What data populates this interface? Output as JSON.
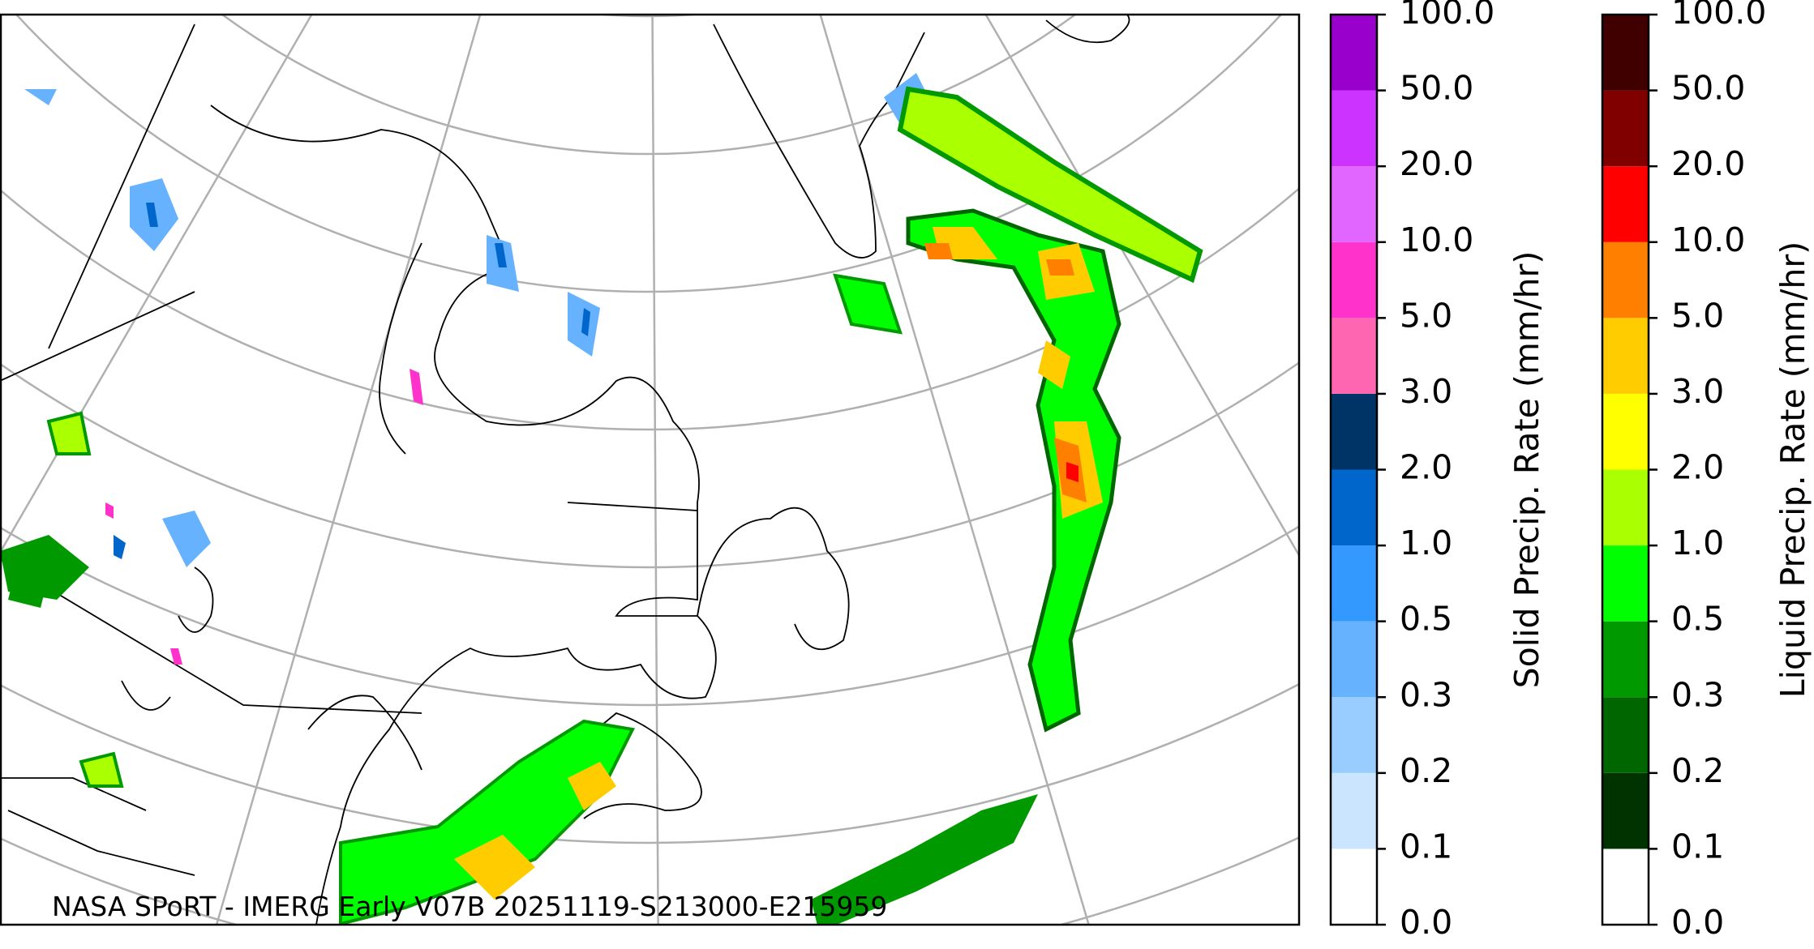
{
  "map": {
    "caption": "NASA SPoRT - IMERG Early V07B 20251119-S213000-E215959"
  },
  "colorbars": [
    {
      "label": "Solid Precip. Rate (mm/hr)",
      "ticks": [
        {
          "value": 0,
          "label": "0.0"
        },
        {
          "value": 0.1,
          "label": "0.1"
        },
        {
          "value": 0.2,
          "label": "0.2"
        },
        {
          "value": 0.3,
          "label": "0.3"
        },
        {
          "value": 0.5,
          "label": "0.5"
        },
        {
          "value": 1,
          "label": "1.0"
        },
        {
          "value": 2,
          "label": "2.0"
        },
        {
          "value": 3,
          "label": "3.0"
        },
        {
          "value": 5,
          "label": "5.0"
        },
        {
          "value": 10,
          "label": "10.0"
        },
        {
          "value": 20,
          "label": "20.0"
        },
        {
          "value": 50,
          "label": "50.0"
        },
        {
          "value": 100,
          "label": "100.0"
        }
      ],
      "colors": [
        "#ffffff",
        "#cce5ff",
        "#99ccff",
        "#66b2ff",
        "#3399ff",
        "#0066cc",
        "#003366",
        "#ff66b2",
        "#ff33cc",
        "#e066ff",
        "#cc33ff",
        "#9900cc"
      ]
    },
    {
      "label": "Liquid Precip. Rate (mm/hr)",
      "ticks": [
        {
          "value": 0,
          "label": "0.0"
        },
        {
          "value": 0.1,
          "label": "0.1"
        },
        {
          "value": 0.2,
          "label": "0.2"
        },
        {
          "value": 0.3,
          "label": "0.3"
        },
        {
          "value": 0.5,
          "label": "0.5"
        },
        {
          "value": 1,
          "label": "1.0"
        },
        {
          "value": 2,
          "label": "2.0"
        },
        {
          "value": 3,
          "label": "3.0"
        },
        {
          "value": 5,
          "label": "5.0"
        },
        {
          "value": 10,
          "label": "10.0"
        },
        {
          "value": 20,
          "label": "20.0"
        },
        {
          "value": 50,
          "label": "50.0"
        },
        {
          "value": 100,
          "label": "100.0"
        }
      ],
      "colors": [
        "#ffffff",
        "#003300",
        "#006600",
        "#009900",
        "#00ff00",
        "#aaff00",
        "#ffff00",
        "#ffcc00",
        "#ff8000",
        "#ff0000",
        "#800000",
        "#400000"
      ]
    }
  ]
}
